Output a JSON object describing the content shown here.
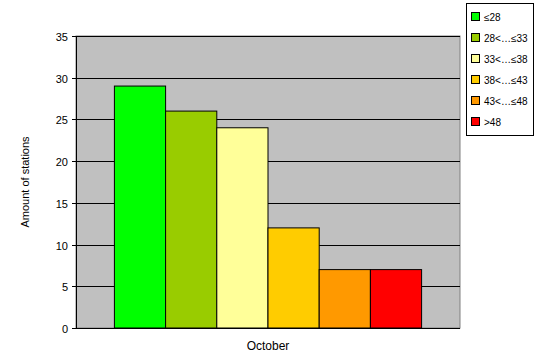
{
  "chart_data": {
    "type": "bar",
    "y_label": "Amount of stations",
    "categories": [
      "October"
    ],
    "series": [
      {
        "name": "≤28",
        "color": "#00ff00",
        "values": [
          29
        ]
      },
      {
        "name": "28<…≤33",
        "color": "#99cc00",
        "values": [
          26
        ]
      },
      {
        "name": "33<…≤38",
        "color": "#ffff99",
        "values": [
          24
        ]
      },
      {
        "name": "38<…≤43",
        "color": "#ffcc00",
        "values": [
          12
        ]
      },
      {
        "name": "43<…≤48",
        "color": "#ff9900",
        "values": [
          7
        ]
      },
      {
        "name": ">48",
        "color": "#ff0000",
        "values": [
          7
        ]
      }
    ],
    "ylim": [
      0,
      35
    ],
    "yticks": [
      0,
      5,
      10,
      15,
      20,
      25,
      30,
      35
    ],
    "grid": true,
    "legend": "right"
  }
}
